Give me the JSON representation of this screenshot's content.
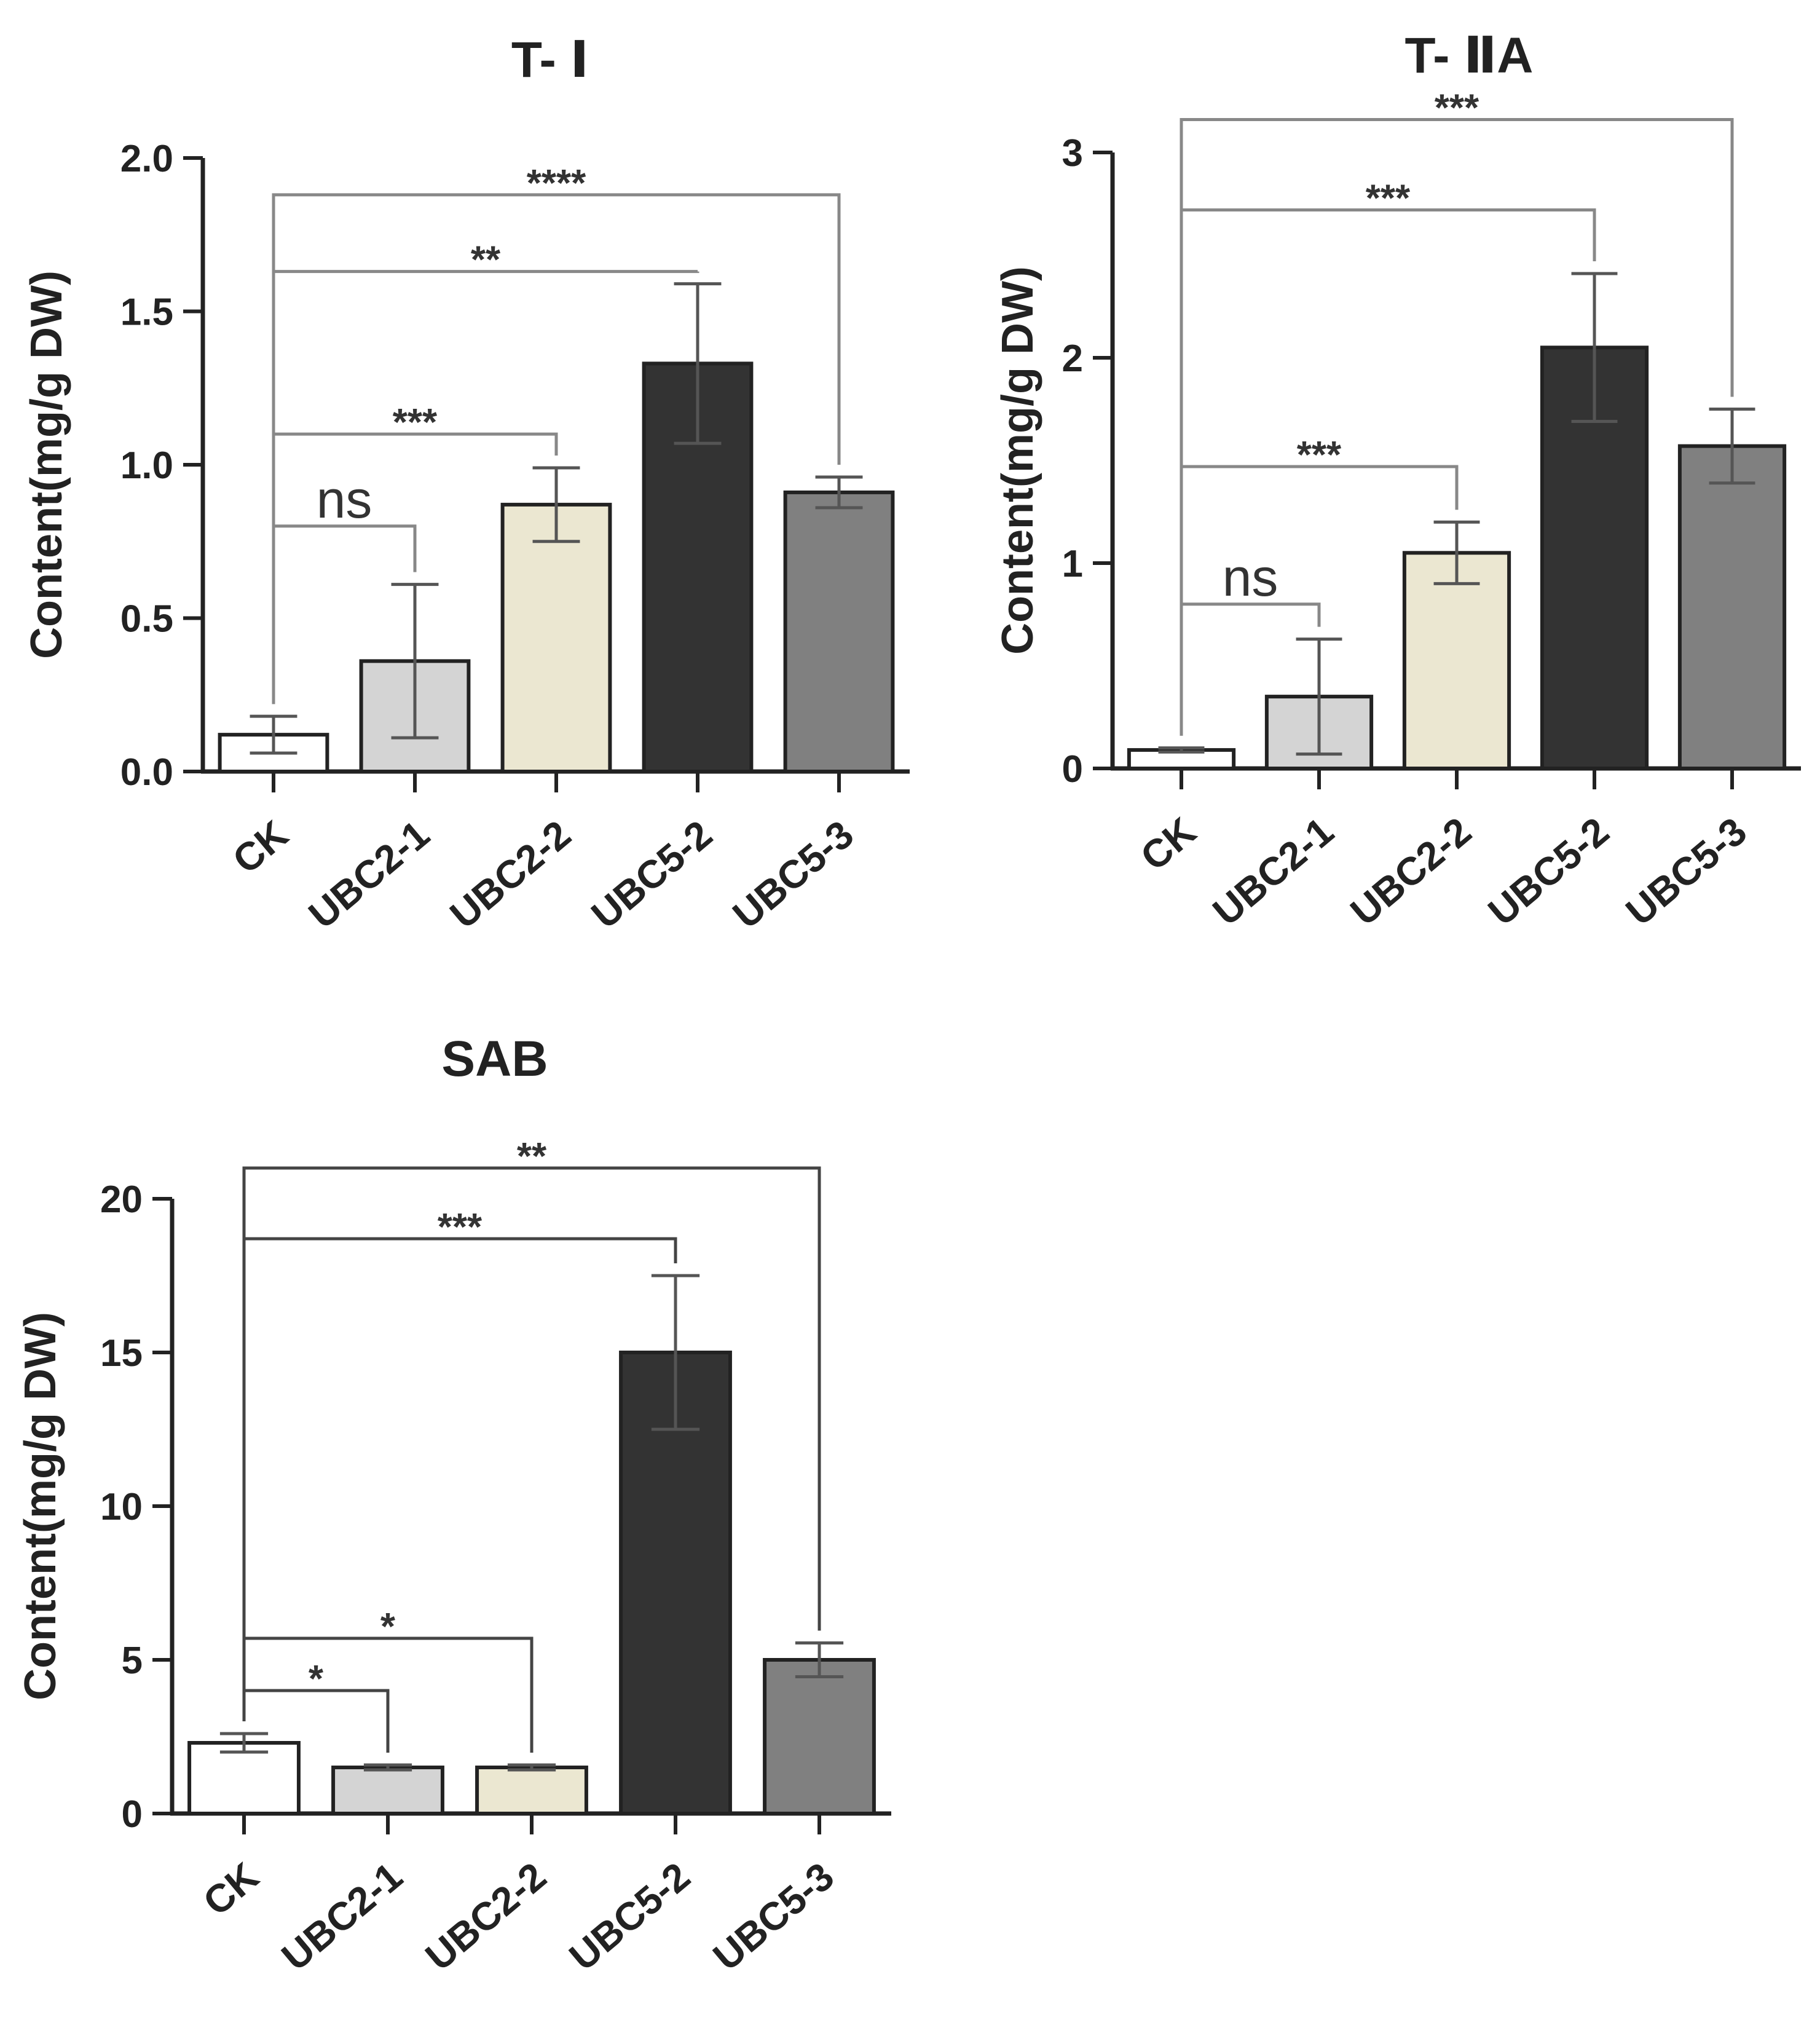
{
  "colors": {
    "CK": "#ffffff",
    "UBC2-1": "#d4d4d4",
    "UBC2-2": "#ebe7d1",
    "UBC5-2": "#333333",
    "UBC5-3": "#808080",
    "axis": "#222222",
    "bracket_light": "#888888",
    "bracket_dark": "#444444"
  },
  "chart_data": [
    {
      "id": "t1",
      "type": "bar",
      "title": "T- Ⅰ",
      "xlabel": "",
      "ylabel": "Content(mg/g DW)",
      "categories": [
        "CK",
        "UBC2-1",
        "UBC2-2",
        "UBC5-2",
        "UBC5-3"
      ],
      "values": [
        0.12,
        0.36,
        0.87,
        1.33,
        0.91
      ],
      "errors": [
        0.06,
        0.25,
        0.12,
        0.26,
        0.05
      ],
      "ylim": [
        0,
        2.0
      ],
      "yticks": [
        0.0,
        0.5,
        1.0,
        1.5,
        2.0
      ],
      "ytick_labels": [
        "0.0",
        "0.5",
        "1.0",
        "1.5",
        "2.0"
      ],
      "significance": [
        {
          "from": 0,
          "to": 1,
          "level": 0.8,
          "label": "ns"
        },
        {
          "from": 0,
          "to": 2,
          "level": 1.1,
          "label": "***"
        },
        {
          "from": 0,
          "to": 3,
          "level": 1.63,
          "label": "**"
        },
        {
          "from": 0,
          "to": 4,
          "level": 1.88,
          "label": "****"
        }
      ]
    },
    {
      "id": "t2a",
      "type": "bar",
      "title": "T- ⅡA",
      "xlabel": "",
      "ylabel": "Content(mg/g DW)",
      "categories": [
        "CK",
        "UBC2-1",
        "UBC2-2",
        "UBC5-2",
        "UBC5-3"
      ],
      "values": [
        0.09,
        0.35,
        1.05,
        2.05,
        1.57
      ],
      "errors": [
        0.01,
        0.28,
        0.15,
        0.36,
        0.18
      ],
      "ylim": [
        0,
        3
      ],
      "yticks": [
        0,
        1,
        2,
        3
      ],
      "ytick_labels": [
        "0",
        "1",
        "2",
        "3"
      ],
      "significance": [
        {
          "from": 0,
          "to": 1,
          "level": 0.8,
          "label": "ns"
        },
        {
          "from": 0,
          "to": 2,
          "level": 1.47,
          "label": "***"
        },
        {
          "from": 0,
          "to": 3,
          "level": 2.72,
          "label": "***"
        },
        {
          "from": 0,
          "to": 4,
          "level": 3.16,
          "label": "***"
        }
      ]
    },
    {
      "id": "sab",
      "type": "bar",
      "title": "SAB",
      "xlabel": "",
      "ylabel": "Content(mg/g DW)",
      "categories": [
        "CK",
        "UBC2-1",
        "UBC2-2",
        "UBC5-2",
        "UBC5-3"
      ],
      "values": [
        2.3,
        1.5,
        1.5,
        15.0,
        5.0
      ],
      "errors": [
        0.3,
        0.08,
        0.08,
        2.5,
        0.55
      ],
      "ylim": [
        0,
        20
      ],
      "yticks": [
        0,
        5,
        10,
        15,
        20
      ],
      "ytick_labels": [
        "0",
        "5",
        "10",
        "15",
        "20"
      ],
      "significance": [
        {
          "from": 0,
          "to": 1,
          "level": 4.0,
          "label": "*"
        },
        {
          "from": 0,
          "to": 2,
          "level": 5.7,
          "label": "*"
        },
        {
          "from": 0,
          "to": 3,
          "level": 18.7,
          "label": "***"
        },
        {
          "from": 0,
          "to": 4,
          "level": 21.0,
          "label": "**"
        }
      ]
    }
  ]
}
